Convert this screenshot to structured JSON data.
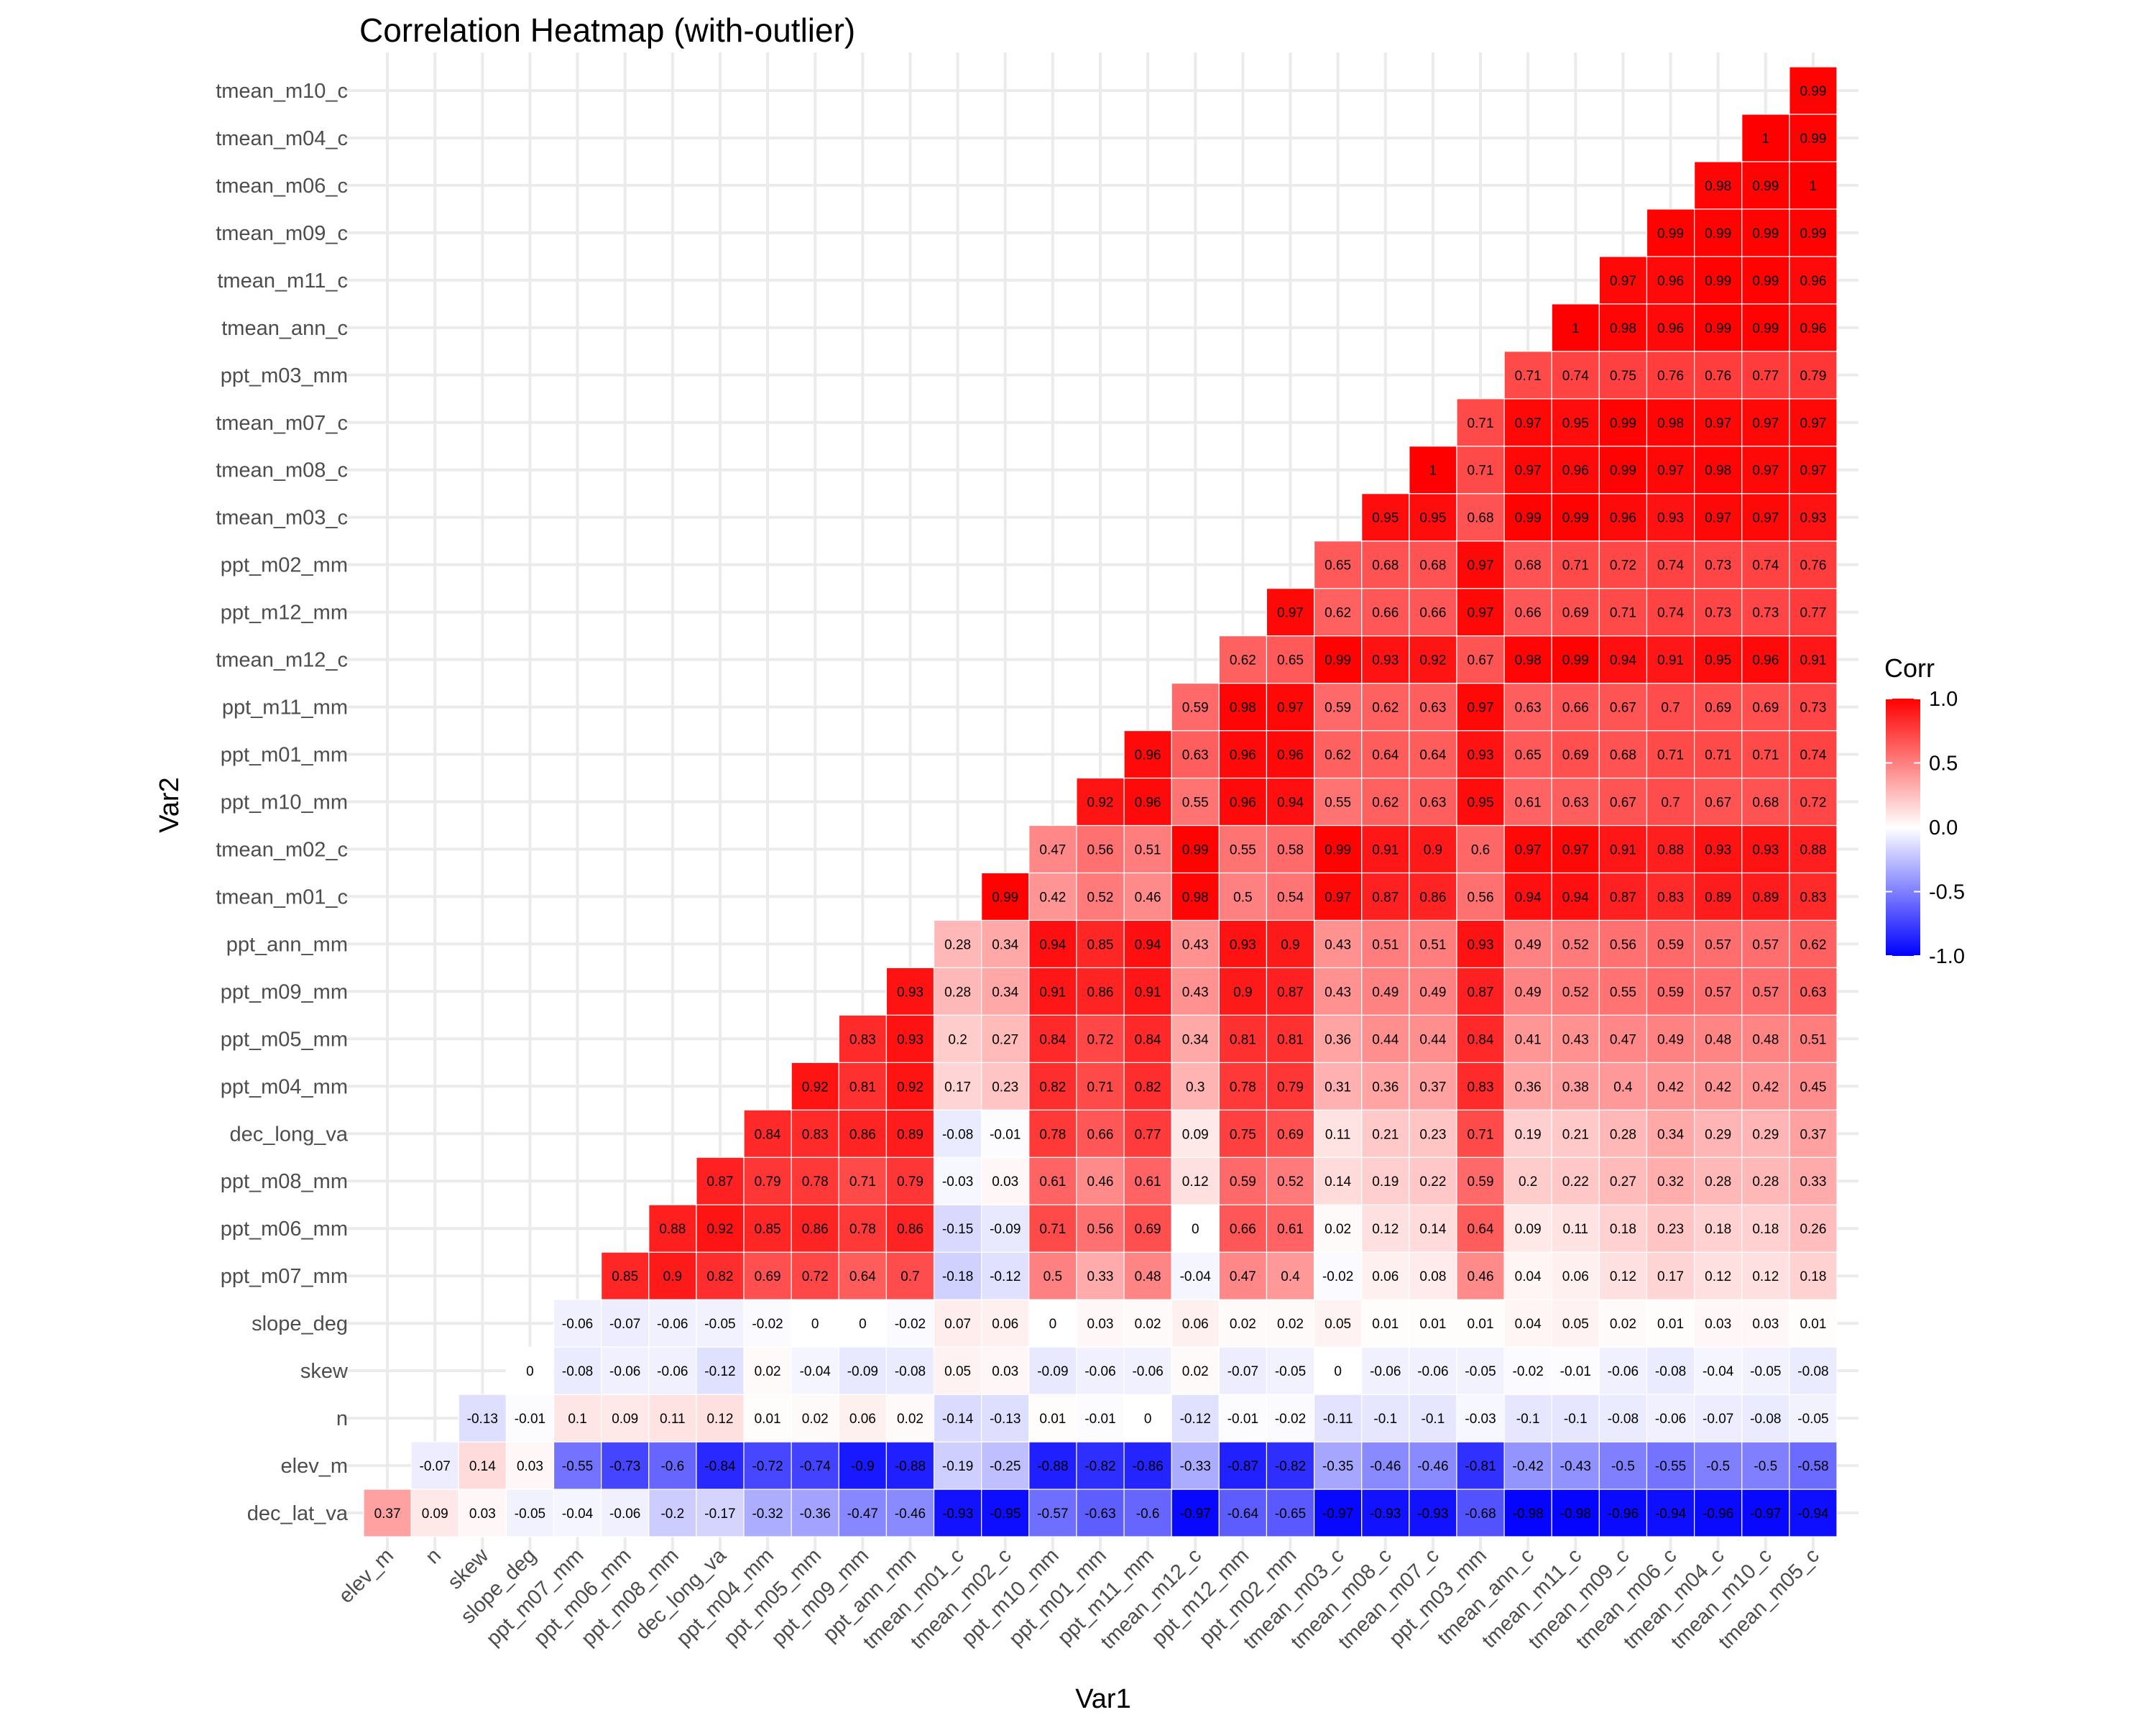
{
  "chart_data": {
    "type": "heatmap",
    "title": "Correlation Heatmap (with-outlier)",
    "xlabel": "Var1",
    "ylabel": "Var2",
    "x_categories": [
      "elev_m",
      "n",
      "skew",
      "slope_deg",
      "ppt_m07_mm",
      "ppt_m06_mm",
      "ppt_m08_mm",
      "dec_long_va",
      "ppt_m04_mm",
      "ppt_m05_mm",
      "ppt_m09_mm",
      "ppt_ann_mm",
      "tmean_m01_c",
      "tmean_m02_c",
      "ppt_m10_mm",
      "ppt_m01_mm",
      "ppt_m11_mm",
      "tmean_m12_c",
      "ppt_m12_mm",
      "ppt_m02_mm",
      "tmean_m03_c",
      "tmean_m08_c",
      "tmean_m07_c",
      "ppt_m03_mm",
      "tmean_ann_c",
      "tmean_m11_c",
      "tmean_m09_c",
      "tmean_m06_c",
      "tmean_m04_c",
      "tmean_m10_c",
      "tmean_m05_c"
    ],
    "y_categories": [
      "dec_lat_va",
      "elev_m",
      "n",
      "skew",
      "slope_deg",
      "ppt_m07_mm",
      "ppt_m06_mm",
      "ppt_m08_mm",
      "dec_long_va",
      "ppt_m04_mm",
      "ppt_m05_mm",
      "ppt_m09_mm",
      "ppt_ann_mm",
      "tmean_m01_c",
      "tmean_m02_c",
      "ppt_m10_mm",
      "ppt_m01_mm",
      "ppt_m11_mm",
      "tmean_m12_c",
      "ppt_m12_mm",
      "ppt_m02_mm",
      "tmean_m03_c",
      "tmean_m08_c",
      "tmean_m07_c",
      "ppt_m03_mm",
      "tmean_ann_c",
      "tmean_m11_c",
      "tmean_m09_c",
      "tmean_m06_c",
      "tmean_m04_c",
      "tmean_m10_c"
    ],
    "rows": [
      [
        0.37,
        0.09,
        0.03,
        -0.05,
        -0.04,
        -0.06,
        -0.2,
        -0.17,
        -0.32,
        -0.36,
        -0.47,
        -0.46,
        -0.93,
        -0.95,
        -0.57,
        -0.63,
        -0.6,
        -0.97,
        -0.64,
        -0.65,
        -0.97,
        -0.93,
        -0.93,
        -0.68,
        -0.98,
        -0.98,
        -0.96,
        -0.94,
        -0.96,
        -0.97,
        -0.94
      ],
      [
        -0.07,
        0.14,
        0.03,
        -0.55,
        -0.73,
        -0.6,
        -0.84,
        -0.72,
        -0.74,
        -0.9,
        -0.88,
        -0.19,
        -0.25,
        -0.88,
        -0.82,
        -0.86,
        -0.33,
        -0.87,
        -0.82,
        -0.35,
        -0.46,
        -0.46,
        -0.81,
        -0.42,
        -0.43,
        -0.5,
        -0.55,
        -0.5,
        -0.5,
        -0.58
      ],
      [
        -0.13,
        -0.01,
        0.1,
        0.09,
        0.11,
        0.12,
        0.01,
        0.02,
        0.06,
        0.02,
        -0.14,
        -0.13,
        0.01,
        -0.01,
        0,
        -0.12,
        -0.01,
        -0.02,
        -0.11,
        -0.1,
        -0.1,
        -0.03,
        -0.1,
        -0.1,
        -0.08,
        -0.06,
        -0.07,
        -0.08,
        -0.05
      ],
      [
        0,
        -0.08,
        -0.06,
        -0.06,
        -0.12,
        0.02,
        -0.04,
        -0.09,
        -0.08,
        0.05,
        0.03,
        -0.09,
        -0.06,
        -0.06,
        0.02,
        -0.07,
        -0.05,
        0,
        -0.06,
        -0.06,
        -0.05,
        -0.02,
        -0.01,
        -0.06,
        -0.08,
        -0.04,
        -0.05,
        -0.08
      ],
      [
        -0.06,
        -0.07,
        -0.06,
        -0.05,
        -0.02,
        0,
        0,
        -0.02,
        0.07,
        0.06,
        0,
        0.03,
        0.02,
        0.06,
        0.02,
        0.02,
        0.05,
        0.01,
        0.01,
        0.01,
        0.04,
        0.05,
        0.02,
        0.01,
        0.03,
        0.03,
        0.01
      ],
      [
        0.85,
        0.9,
        0.82,
        0.69,
        0.72,
        0.64,
        0.7,
        -0.18,
        -0.12,
        0.5,
        0.33,
        0.48,
        -0.04,
        0.47,
        0.4,
        -0.02,
        0.06,
        0.08,
        0.46,
        0.04,
        0.06,
        0.12,
        0.17,
        0.12,
        0.12,
        0.18
      ],
      [
        0.88,
        0.92,
        0.85,
        0.86,
        0.78,
        0.86,
        -0.15,
        -0.09,
        0.71,
        0.56,
        0.69,
        0,
        0.66,
        0.61,
        0.02,
        0.12,
        0.14,
        0.64,
        0.09,
        0.11,
        0.18,
        0.23,
        0.18,
        0.18,
        0.26
      ],
      [
        0.87,
        0.79,
        0.78,
        0.71,
        0.79,
        -0.03,
        0.03,
        0.61,
        0.46,
        0.61,
        0.12,
        0.59,
        0.52,
        0.14,
        0.19,
        0.22,
        0.59,
        0.2,
        0.22,
        0.27,
        0.32,
        0.28,
        0.28,
        0.33
      ],
      [
        0.84,
        0.83,
        0.86,
        0.89,
        -0.08,
        -0.01,
        0.78,
        0.66,
        0.77,
        0.09,
        0.75,
        0.69,
        0.11,
        0.21,
        0.23,
        0.71,
        0.19,
        0.21,
        0.28,
        0.34,
        0.29,
        0.29,
        0.37
      ],
      [
        0.92,
        0.81,
        0.92,
        0.17,
        0.23,
        0.82,
        0.71,
        0.82,
        0.3,
        0.78,
        0.79,
        0.31,
        0.36,
        0.37,
        0.83,
        0.36,
        0.38,
        0.4,
        0.42,
        0.42,
        0.42,
        0.45
      ],
      [
        0.83,
        0.93,
        0.2,
        0.27,
        0.84,
        0.72,
        0.84,
        0.34,
        0.81,
        0.81,
        0.36,
        0.44,
        0.44,
        0.84,
        0.41,
        0.43,
        0.47,
        0.49,
        0.48,
        0.48,
        0.51
      ],
      [
        0.93,
        0.28,
        0.34,
        0.91,
        0.86,
        0.91,
        0.43,
        0.9,
        0.87,
        0.43,
        0.49,
        0.49,
        0.87,
        0.49,
        0.52,
        0.55,
        0.59,
        0.57,
        0.57,
        0.63
      ],
      [
        0.28,
        0.34,
        0.94,
        0.85,
        0.94,
        0.43,
        0.93,
        0.9,
        0.43,
        0.51,
        0.51,
        0.93,
        0.49,
        0.52,
        0.56,
        0.59,
        0.57,
        0.57,
        0.62
      ],
      [
        0.99,
        0.42,
        0.52,
        0.46,
        0.98,
        0.5,
        0.54,
        0.97,
        0.87,
        0.86,
        0.56,
        0.94,
        0.94,
        0.87,
        0.83,
        0.89,
        0.89,
        0.83
      ],
      [
        0.47,
        0.56,
        0.51,
        0.99,
        0.55,
        0.58,
        0.99,
        0.91,
        0.9,
        0.6,
        0.97,
        0.97,
        0.91,
        0.88,
        0.93,
        0.93,
        0.88
      ],
      [
        0.92,
        0.96,
        0.55,
        0.96,
        0.94,
        0.55,
        0.62,
        0.63,
        0.95,
        0.61,
        0.63,
        0.67,
        0.7,
        0.67,
        0.68,
        0.72
      ],
      [
        0.96,
        0.63,
        0.96,
        0.96,
        0.62,
        0.64,
        0.64,
        0.93,
        0.65,
        0.69,
        0.68,
        0.71,
        0.71,
        0.71,
        0.74
      ],
      [
        0.59,
        0.98,
        0.97,
        0.59,
        0.62,
        0.63,
        0.97,
        0.63,
        0.66,
        0.67,
        0.7,
        0.69,
        0.69,
        0.73
      ],
      [
        0.62,
        0.65,
        0.99,
        0.93,
        0.92,
        0.67,
        0.98,
        0.99,
        0.94,
        0.91,
        0.95,
        0.96,
        0.91
      ],
      [
        0.97,
        0.62,
        0.66,
        0.66,
        0.97,
        0.66,
        0.69,
        0.71,
        0.74,
        0.73,
        0.73,
        0.77
      ],
      [
        0.65,
        0.68,
        0.68,
        0.97,
        0.68,
        0.71,
        0.72,
        0.74,
        0.73,
        0.74,
        0.76
      ],
      [
        0.95,
        0.95,
        0.68,
        0.99,
        0.99,
        0.96,
        0.93,
        0.97,
        0.97,
        0.93
      ],
      [
        1,
        0.71,
        0.97,
        0.96,
        0.99,
        0.97,
        0.98,
        0.97,
        0.97
      ],
      [
        0.71,
        0.97,
        0.95,
        0.99,
        0.98,
        0.97,
        0.97,
        0.97
      ],
      [
        0.71,
        0.74,
        0.75,
        0.76,
        0.76,
        0.77,
        0.79
      ],
      [
        1,
        0.98,
        0.96,
        0.99,
        0.99,
        0.96
      ],
      [
        0.97,
        0.96,
        0.99,
        0.99,
        0.96
      ],
      [
        0.99,
        0.99,
        0.99,
        0.99
      ],
      [
        0.98,
        0.99,
        1
      ],
      [
        1,
        0.99
      ],
      [
        0.99
      ]
    ],
    "legend": {
      "title": "Corr",
      "ticks": [
        "1.0",
        "0.5",
        "0.0",
        "-0.5",
        "-1.0"
      ],
      "tick_values": [
        1,
        0.5,
        0,
        -0.5,
        -1
      ],
      "placement": "right"
    },
    "color_scale": {
      "low": "#0000ff",
      "mid": "#ffffff",
      "high": "#ff0000",
      "limits": [
        -1,
        1
      ]
    },
    "grid": true
  }
}
